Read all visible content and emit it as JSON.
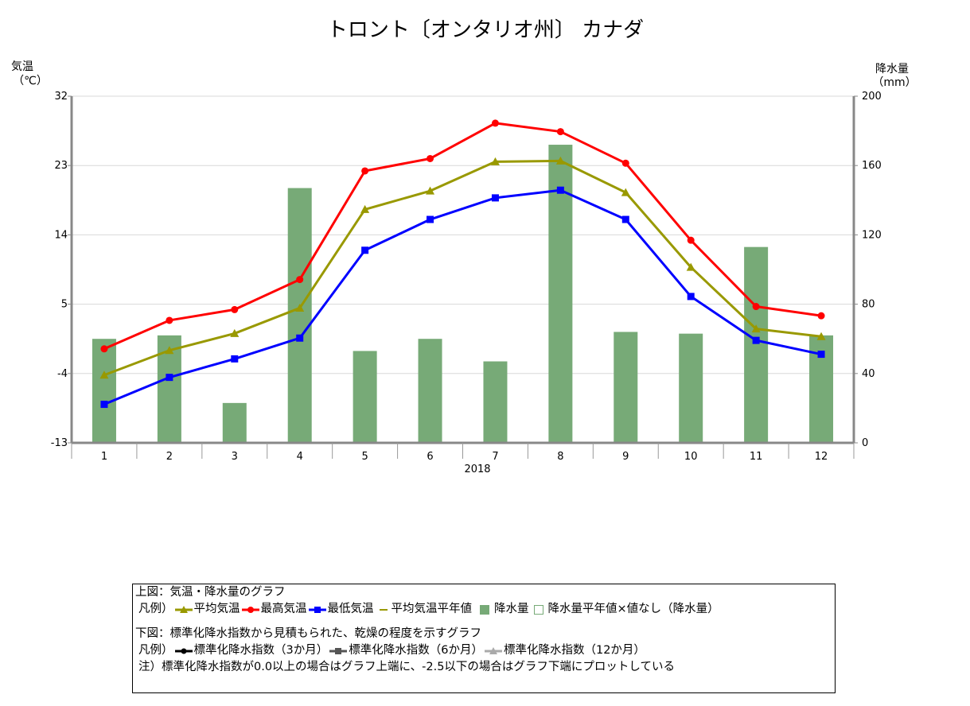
{
  "title": "トロント〔オンタリオ州〕 カナダ",
  "chart_data": {
    "type": "bar+line",
    "x_label": "2018",
    "categories": [
      "1",
      "2",
      "3",
      "4",
      "5",
      "6",
      "7",
      "8",
      "9",
      "10",
      "11",
      "12"
    ],
    "left_axis": {
      "title_line1": "気温",
      "title_line2": "（℃）",
      "range": [
        -13,
        32
      ],
      "ticks": [
        "-13",
        "-4",
        "5",
        "14",
        "23",
        "32"
      ]
    },
    "right_axis": {
      "title_line1": "降水量",
      "title_line2": "（mm）",
      "range": [
        0,
        200
      ],
      "ticks": [
        "0",
        "40",
        "80",
        "120",
        "160",
        "200"
      ]
    },
    "grid": true,
    "bars": {
      "name": "降水量",
      "color": "#77aa77",
      "values": [
        60,
        62,
        23,
        147,
        53,
        60,
        47,
        172,
        64,
        63,
        113,
        62
      ]
    },
    "series": [
      {
        "name": "最高気温",
        "color": "#ff0000",
        "marker": "circle",
        "values": [
          -0.8,
          2.9,
          4.3,
          8.2,
          22.3,
          23.9,
          28.5,
          27.4,
          23.3,
          13.3,
          4.7,
          3.5
        ]
      },
      {
        "name": "平均気温",
        "color": "#999900",
        "marker": "triangle",
        "values": [
          -4.2,
          -1.0,
          1.2,
          4.5,
          17.3,
          19.7,
          23.5,
          23.6,
          19.5,
          9.8,
          1.8,
          0.8
        ]
      },
      {
        "name": "最低気温",
        "color": "#0000ff",
        "marker": "square",
        "values": [
          -8.0,
          -4.5,
          -2.1,
          0.6,
          12.0,
          16.0,
          18.8,
          19.8,
          16.0,
          6.0,
          0.3,
          -1.5
        ]
      }
    ]
  },
  "legend": {
    "upper_title": "上図：気温・降水量のグラフ",
    "upper_prefix": "凡例）",
    "upper_items": {
      "avg": "平均気温",
      "max": "最高気温",
      "min": "最低気温",
      "avg_normal": "平均気温平年値",
      "precip": "降水量",
      "precip_normal": "降水量平年値",
      "no_value": "×値なし（降水量）"
    },
    "lower_title": "下図：標準化降水指数から見積もられた、乾燥の程度を示すグラフ",
    "lower_prefix": "凡例）",
    "lower_items": {
      "spi3": "標準化降水指数（3か月）",
      "spi6": "標準化降水指数（6か月）",
      "spi12": "標準化降水指数（12か月）"
    },
    "note": "注）標準化降水指数が0.0以上の場合はグラフ上端に、-2.5以下の場合はグラフ下端にプロットしている",
    "colors": {
      "avg": "#999900",
      "max": "#ff0000",
      "min": "#0000ff",
      "avg_normal": "#999900",
      "precip": "#77aa77",
      "spi3": "#000000",
      "spi6": "#555555",
      "spi12": "#aaaaaa"
    }
  }
}
